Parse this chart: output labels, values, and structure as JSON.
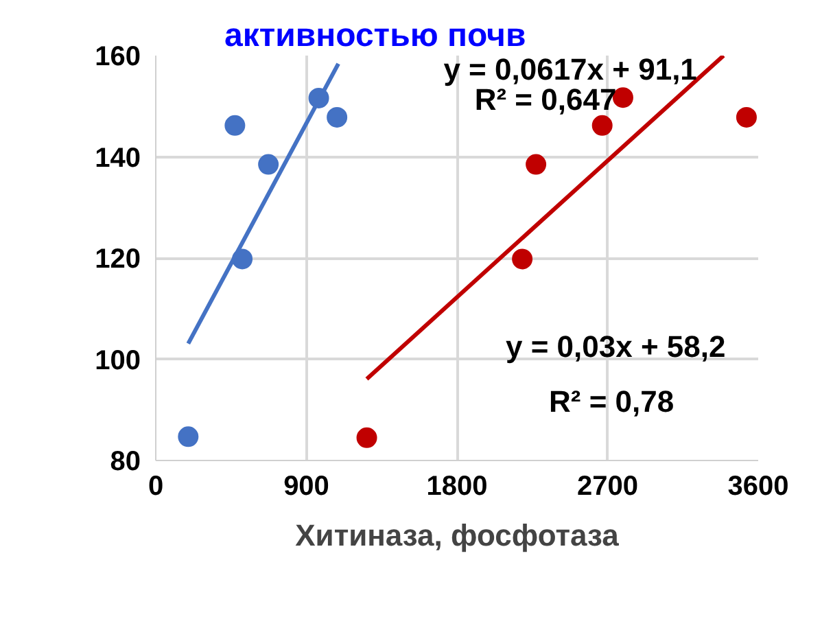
{
  "chart_data": {
    "type": "scatter",
    "title": "активностью почв",
    "xlabel": "Хитиназа, фосфотаза",
    "xlim": [
      0,
      3600
    ],
    "ylim": [
      80,
      160
    ],
    "xticks": [
      0,
      900,
      1800,
      2700,
      3600
    ],
    "yticks": [
      80,
      100,
      120,
      140,
      160
    ],
    "grid": true,
    "series": [
      {
        "color": "#4472c4",
        "marker": "circle",
        "x": [
          194,
          473,
          673,
          517,
          974,
          1083
        ],
        "values": [
          84.7,
          146.2,
          138.5,
          119.8,
          151.6,
          147.8
        ]
      },
      {
        "color": "#c00000",
        "marker": "circle",
        "x": [
          1261,
          2190,
          2272,
          2668,
          2792,
          3530
        ],
        "values": [
          84.5,
          119.8,
          138.5,
          146.2,
          151.7,
          147.8
        ]
      },
      {
        "type": "line",
        "marker": "none",
        "color": "#4472c4",
        "x": [
          194,
          1091
        ],
        "values": [
          103.1,
          158.4
        ]
      },
      {
        "type": "line",
        "marker": "none",
        "color": "#c00000",
        "x": [
          1261,
          3393
        ],
        "values": [
          96.1,
          160
        ]
      }
    ],
    "annotations": [
      "y = 0,0617x + 91,1",
      "R² = 0,647",
      "y = 0,03x + 58,2",
      "R² = 0,78"
    ]
  }
}
